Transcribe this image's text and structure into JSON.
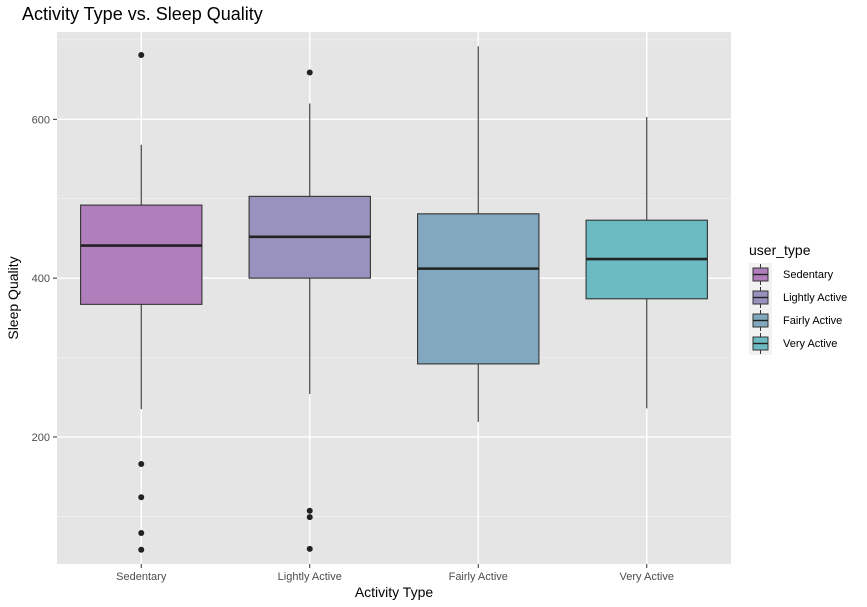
{
  "chart_data": {
    "type": "boxplot",
    "title": "Activity Type vs. Sleep Quality",
    "xlabel": "Activity Type",
    "ylabel": "Sleep Quality",
    "ylim": [
      40,
      710
    ],
    "yticks": [
      200,
      400,
      600
    ],
    "ytick_labels": [
      "200",
      "400",
      "600"
    ],
    "categories": [
      "Sedentary",
      "Lightly Active",
      "Fairly Active",
      "Very Active"
    ],
    "grid": true,
    "legend": {
      "title": "user_type",
      "position": "right",
      "entries": [
        "Sedentary",
        "Lightly Active",
        "Fairly Active",
        "Very Active"
      ]
    },
    "series": [
      {
        "category": "Sedentary",
        "color": "#B07EBB",
        "whisker_low": 235,
        "q1": 367,
        "median": 441,
        "q3": 492,
        "whisker_high": 568,
        "outliers": [
          58,
          79,
          124,
          166,
          681
        ]
      },
      {
        "category": "Lightly Active",
        "color": "#9A92BE",
        "whisker_low": 254,
        "q1": 400,
        "median": 452,
        "q3": 503,
        "whisker_high": 620,
        "outliers": [
          59,
          99,
          107,
          659
        ]
      },
      {
        "category": "Fairly Active",
        "color": "#81A8BE",
        "whisker_low": 219,
        "q1": 292,
        "median": 412,
        "q3": 481,
        "whisker_high": 692,
        "outliers": []
      },
      {
        "category": "Very Active",
        "color": "#6DBBC2",
        "whisker_low": 236,
        "q1": 374,
        "median": 424,
        "q3": 473,
        "whisker_high": 603,
        "outliers": []
      }
    ]
  }
}
